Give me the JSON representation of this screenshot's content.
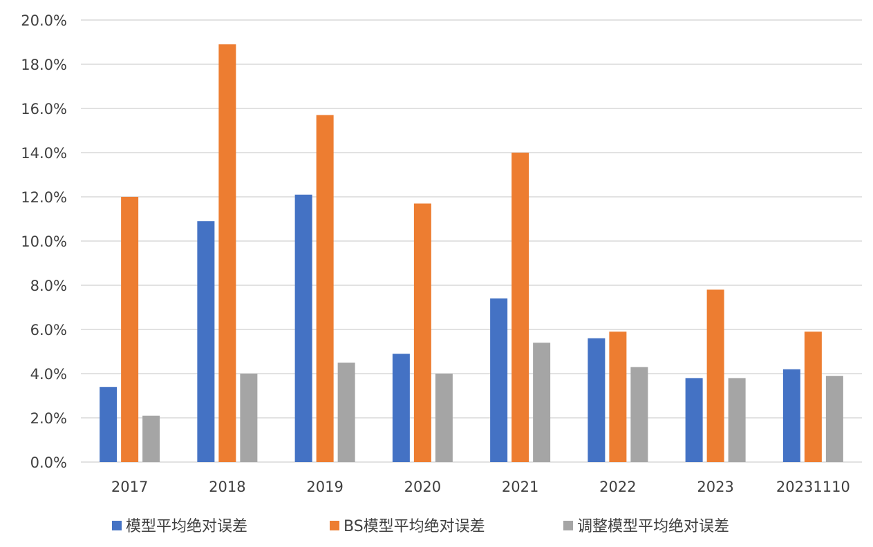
{
  "chart_data": {
    "type": "bar",
    "categories": [
      "2017",
      "2018",
      "2019",
      "2020",
      "2021",
      "2022",
      "2023",
      "20231110"
    ],
    "series": [
      {
        "name": "模型平均绝对误差",
        "color": "#4472c4",
        "values": [
          3.4,
          10.9,
          12.1,
          4.9,
          7.4,
          5.6,
          3.8,
          4.2
        ]
      },
      {
        "name": "BS模型平均绝对误差",
        "color": "#ed7d31",
        "values": [
          12.0,
          18.9,
          15.7,
          11.7,
          14.0,
          5.9,
          7.8,
          5.9
        ]
      },
      {
        "name": "调整模型平均绝对误差",
        "color": "#a5a5a5",
        "values": [
          2.1,
          4.0,
          4.5,
          4.0,
          5.4,
          4.3,
          3.8,
          3.9
        ]
      }
    ],
    "yticks": [
      "0.0%",
      "2.0%",
      "4.0%",
      "6.0%",
      "8.0%",
      "10.0%",
      "12.0%",
      "14.0%",
      "16.0%",
      "18.0%",
      "20.0%"
    ],
    "ylim": [
      0,
      20
    ],
    "grid": true,
    "legend_position": "bottom"
  }
}
